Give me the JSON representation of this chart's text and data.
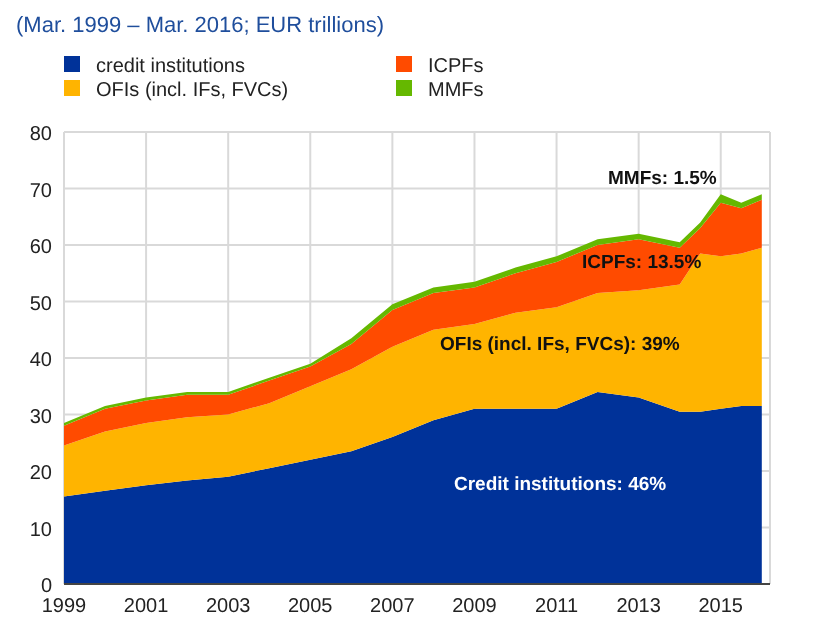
{
  "chart_data": {
    "type": "area",
    "stacked": true,
    "title": "(Mar. 1999 – Mar. 2016; EUR trillions)",
    "x": [
      1999,
      2000,
      2001,
      2002,
      2003,
      2004,
      2005,
      2006,
      2007,
      2008,
      2009,
      2010,
      2011,
      2012,
      2013,
      2014,
      2014.5,
      2015,
      2015.5,
      2016
    ],
    "series": [
      {
        "name": "credit institutions",
        "color": "#003299",
        "values": [
          15.5,
          16.5,
          17.5,
          18.3,
          19,
          20.5,
          22,
          23.5,
          26,
          29,
          31,
          31,
          31,
          34,
          33,
          30.5,
          30.5,
          31,
          31.5,
          31.5
        ]
      },
      {
        "name": "OFIs (incl. IFs, FVCs)",
        "color": "#ffb400",
        "values": [
          9,
          10.5,
          11,
          11.2,
          11,
          11.5,
          13,
          14.5,
          16,
          16,
          15,
          17,
          18,
          17.5,
          19,
          22.5,
          28,
          27,
          27,
          28
        ]
      },
      {
        "name": "ICPFs",
        "color": "#ff4b00",
        "values": [
          3.5,
          4,
          4,
          4,
          3.5,
          4,
          3.5,
          4.5,
          6.5,
          6.5,
          6.5,
          7,
          8,
          8.5,
          9,
          6.5,
          4.5,
          9.5,
          8,
          8.5
        ]
      },
      {
        "name": "MMFs",
        "color": "#65b800",
        "values": [
          0.5,
          0.5,
          0.5,
          0.5,
          0.5,
          0.5,
          0.5,
          1,
          1,
          1,
          1,
          1,
          1,
          1,
          1,
          1,
          1,
          1.5,
          1,
          1
        ]
      }
    ],
    "xlim": [
      1999,
      2016.2
    ],
    "xticks": [
      1999,
      2001,
      2003,
      2005,
      2007,
      2009,
      2011,
      2013,
      2015
    ],
    "ylim": [
      0,
      80
    ],
    "yticks": [
      0,
      10,
      20,
      30,
      40,
      50,
      60,
      70,
      80
    ],
    "grid": true,
    "legend": "top",
    "annotations": [
      "MMFs: 1.5%",
      "ICPFs: 13.5%",
      "OFIs (incl. IFs, FVCs): 39%",
      "Credit institutions: 46%"
    ]
  }
}
